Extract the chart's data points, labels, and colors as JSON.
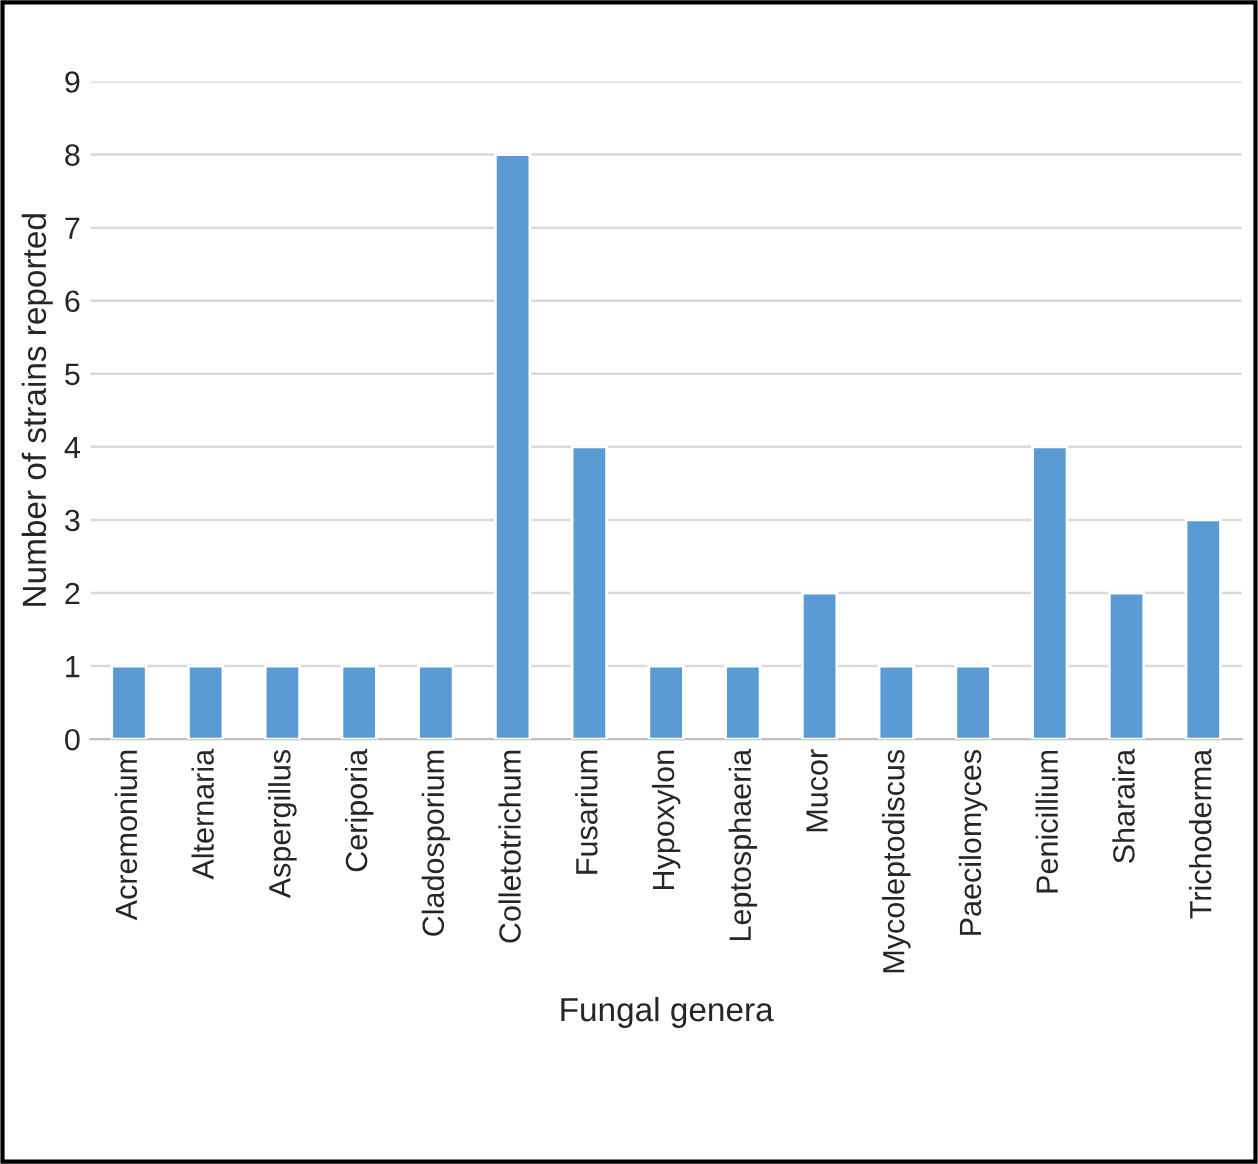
{
  "chart_data": {
    "type": "bar",
    "xlabel": "Fungal genera",
    "ylabel": "Number of strains reported",
    "categories": [
      "Acremonium",
      "Alternaria",
      "Aspergillus",
      "Ceriporia",
      "Cladosporium",
      "Colletotrichum",
      "Fusarium",
      "Hypoxylon",
      "Leptosphaeria",
      "Mucor",
      "Mycoleptodiscus",
      "Paecilomyces",
      "Penicillium",
      "Sharaira",
      "Trichoderma"
    ],
    "values": [
      1,
      1,
      1,
      1,
      1,
      8,
      4,
      1,
      1,
      2,
      1,
      1,
      4,
      2,
      3
    ],
    "color": "#5b9bd5",
    "ylim": [
      0,
      9
    ],
    "yticks": [
      0,
      1,
      2,
      3,
      4,
      5,
      6,
      7,
      8,
      9
    ],
    "grid": "y",
    "legend": false
  }
}
